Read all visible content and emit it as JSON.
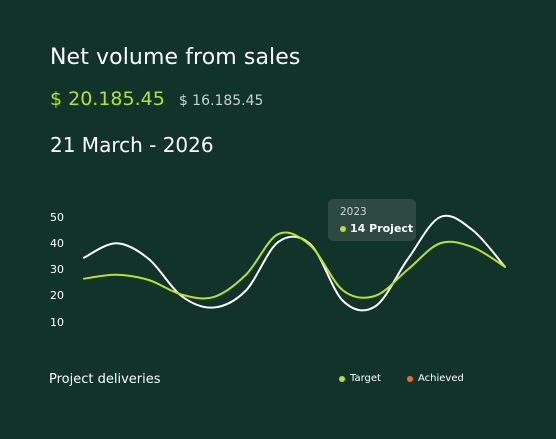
{
  "header": {
    "title": "Net volume from sales",
    "amount_primary": "$ 20.185.45",
    "amount_secondary": "$ 16.185.45",
    "date_range": "21 March - 2026"
  },
  "tooltip": {
    "year": "2023",
    "value": "14 Project"
  },
  "footer": {
    "label": "Project deliveries"
  },
  "legend": [
    {
      "label": "Target",
      "color": "#b6e22f"
    },
    {
      "label": "Achieved",
      "color": "#f26b1d"
    }
  ],
  "colors": {
    "background": "#11332a",
    "accent": "#b6e22f",
    "achieved": "#f26b1d",
    "white_line": "#ffffff"
  },
  "chart_data": {
    "type": "line",
    "ylim": [
      10,
      50
    ],
    "yticks": [
      "50",
      "40",
      "30",
      "20",
      "10"
    ],
    "grid": false,
    "legend_position": "bottom-right",
    "series": [
      {
        "name": "Target",
        "color": "#b6e22f",
        "values": [
          26.5,
          28,
          26,
          20.5,
          19.5,
          28,
          43.5,
          39,
          22,
          20,
          30,
          40,
          38.5,
          31
        ]
      },
      {
        "values": [
          34.5,
          40,
          34,
          20,
          15.5,
          22,
          40.5,
          39.5,
          18,
          16,
          34,
          50,
          45,
          31
        ]
      }
    ]
  }
}
